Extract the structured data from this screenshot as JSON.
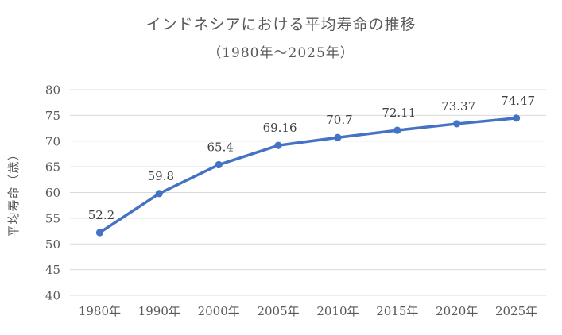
{
  "chart_data": {
    "type": "line",
    "title": "インドネシアにおける平均寿命の推移",
    "subtitle": "（1980年〜2025年）",
    "ylabel": "平均寿命（歳）",
    "xlabel": "",
    "categories": [
      "1980年",
      "1990年",
      "2000年",
      "2005年",
      "2010年",
      "2015年",
      "2020年",
      "2025年"
    ],
    "values": [
      52.2,
      59.8,
      65.4,
      69.16,
      70.7,
      72.11,
      73.37,
      74.47
    ],
    "data_labels": [
      "52.2",
      "59.8",
      "65.4",
      "69.16",
      "70.7",
      "72.11",
      "73.37",
      "74.47"
    ],
    "ylim": [
      40,
      80
    ],
    "yticks": [
      40,
      45,
      50,
      55,
      60,
      65,
      70,
      75,
      80
    ],
    "grid": "horizontal",
    "legend_position": "none",
    "colors": {
      "line": "#4472C4",
      "marker": "#4472C4",
      "gridline": "#D9D9D9",
      "axis_text": "#595959",
      "title_text": "#595959",
      "data_label_text": "#404040",
      "background": "#FFFFFF"
    }
  }
}
